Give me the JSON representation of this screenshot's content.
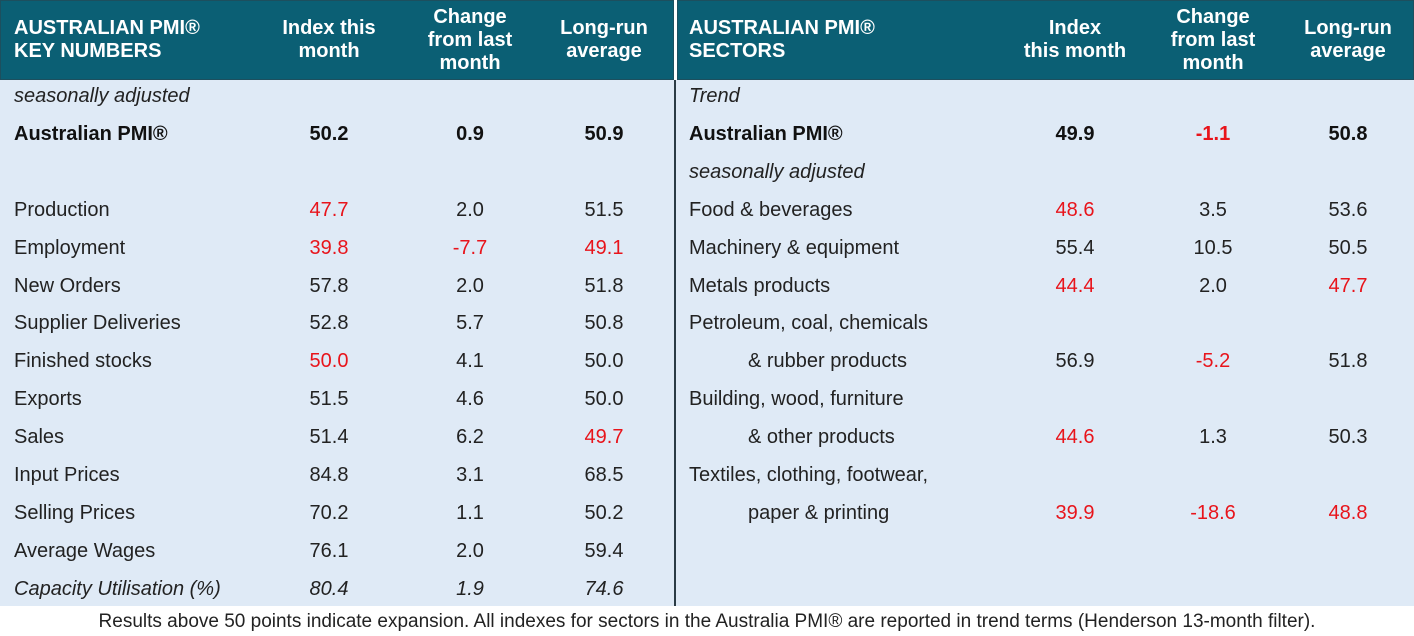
{
  "panels": [
    {
      "header": {
        "title": [
          "AUSTRALIAN PMI®",
          "KEY NUMBERS"
        ],
        "columns": [
          [
            "Index this",
            "month"
          ],
          [
            "Change",
            "from last",
            "month"
          ],
          [
            "Long-run",
            "average"
          ]
        ]
      },
      "sections": [
        {
          "rows": [
            {
              "label": "seasonally adjusted",
              "style": "italic"
            },
            {
              "label": "Australian PMI®",
              "style": "bold",
              "values": [
                "50.2",
                "0.9",
                "50.9"
              ],
              "colors": [
                "black",
                "black",
                "black"
              ]
            }
          ]
        },
        {
          "rows": [
            {
              "label": "Production",
              "values": [
                "47.7",
                "2.0",
                "51.5"
              ],
              "colors": [
                "red",
                "black",
                "black"
              ]
            },
            {
              "label": "Employment",
              "values": [
                "39.8",
                "-7.7",
                "49.1"
              ],
              "colors": [
                "red",
                "red",
                "red"
              ]
            },
            {
              "label": "New Orders",
              "values": [
                "57.8",
                "2.0",
                "51.8"
              ],
              "colors": [
                "black",
                "black",
                "black"
              ]
            },
            {
              "label": "Supplier Deliveries",
              "values": [
                "52.8",
                "5.7",
                "50.8"
              ],
              "colors": [
                "black",
                "black",
                "black"
              ]
            },
            {
              "label": "Finished stocks",
              "values": [
                "50.0",
                "4.1",
                "50.0"
              ],
              "colors": [
                "red",
                "black",
                "black"
              ]
            },
            {
              "label": "Exports",
              "values": [
                "51.5",
                "4.6",
                "50.0"
              ],
              "colors": [
                "black",
                "black",
                "black"
              ]
            },
            {
              "label": "Sales",
              "values": [
                "51.4",
                "6.2",
                "49.7"
              ],
              "colors": [
                "black",
                "black",
                "red"
              ]
            },
            {
              "label": "Input Prices",
              "values": [
                "84.8",
                "3.1",
                "68.5"
              ],
              "colors": [
                "black",
                "black",
                "black"
              ]
            },
            {
              "label": "Selling Prices",
              "values": [
                "70.2",
                "1.1",
                "50.2"
              ],
              "colors": [
                "black",
                "black",
                "black"
              ]
            },
            {
              "label": "Average Wages",
              "values": [
                "76.1",
                "2.0",
                "59.4"
              ],
              "colors": [
                "black",
                "black",
                "black"
              ]
            },
            {
              "label": "Capacity Utilisation (%)",
              "style": "italic",
              "values": [
                "80.4",
                "1.9",
                "74.6"
              ],
              "colors": [
                "black",
                "black",
                "black"
              ]
            }
          ]
        }
      ]
    },
    {
      "header": {
        "title": [
          "AUSTRALIAN PMI®",
          "SECTORS"
        ],
        "columns": [
          [
            "Index",
            "this month"
          ],
          [
            "Change",
            "from last",
            "month"
          ],
          [
            "Long-run",
            "average"
          ]
        ]
      },
      "sections": [
        {
          "rows": [
            {
              "label": "Trend",
              "style": "italic"
            },
            {
              "label": "Australian PMI®",
              "style": "bold",
              "values": [
                "49.9",
                "-1.1",
                "50.8"
              ],
              "colors": [
                "black",
                "red",
                "black"
              ]
            },
            {
              "label": "seasonally adjusted",
              "style": "italic"
            },
            {
              "label": "Food & beverages",
              "values": [
                "48.6",
                "3.5",
                "53.6"
              ],
              "colors": [
                "red",
                "black",
                "black"
              ]
            },
            {
              "label": "Machinery & equipment",
              "values": [
                "55.4",
                "10.5",
                "50.5"
              ],
              "colors": [
                "black",
                "black",
                "black"
              ]
            },
            {
              "label": "Metals products",
              "values": [
                "44.4",
                "2.0",
                "47.7"
              ],
              "colors": [
                "red",
                "black",
                "red"
              ]
            },
            {
              "label": "Petroleum, coal, chemicals"
            },
            {
              "label": "& rubber products",
              "indent": true,
              "values": [
                "56.9",
                "-5.2",
                "51.8"
              ],
              "colors": [
                "black",
                "red",
                "black"
              ]
            },
            {
              "label": "Building, wood, furniture"
            },
            {
              "label": "& other products",
              "indent": true,
              "values": [
                "44.6",
                "1.3",
                "50.3"
              ],
              "colors": [
                "red",
                "black",
                "black"
              ]
            },
            {
              "label": "Textiles, clothing, footwear,"
            },
            {
              "label": "paper & printing",
              "indent": true,
              "values": [
                "39.9",
                "-18.6",
                "48.8"
              ],
              "colors": [
                "red",
                "red",
                "red"
              ]
            }
          ]
        }
      ]
    }
  ],
  "footer": "Results above 50 points indicate expansion. All indexes for sectors in the Australia PMI® are reported in trend terms (Henderson 13-month filter)."
}
